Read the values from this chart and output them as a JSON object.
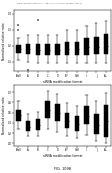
{
  "header_text": "Human Application Substitutions   Aug 2, 2014  Vol.14 of 17  US 8,883,996 B2 (1)",
  "plot1": {
    "title": "FIG. 274",
    "ylabel": "Normalized relative ratio",
    "xlabel": "siRNA modification format",
    "categories": [
      "Pos0",
      "A",
      "B",
      "C",
      "D",
      "E/F",
      "G/H",
      "I",
      "J",
      "K/L"
    ],
    "boxes": [
      {
        "med": 0.18,
        "q1": 0.155,
        "q3": 0.205,
        "whislo": 0.11,
        "whishi": 0.25,
        "fliers": [
          0.3,
          0.33
        ]
      },
      {
        "med": 0.18,
        "q1": 0.15,
        "q3": 0.21,
        "whislo": 0.1,
        "whishi": 0.265,
        "fliers": [
          0.05
        ]
      },
      {
        "med": 0.175,
        "q1": 0.145,
        "q3": 0.21,
        "whislo": 0.09,
        "whishi": 0.265,
        "fliers": [
          0.36
        ]
      },
      {
        "med": 0.175,
        "q1": 0.145,
        "q3": 0.21,
        "whislo": 0.095,
        "whishi": 0.265,
        "fliers": []
      },
      {
        "med": 0.175,
        "q1": 0.145,
        "q3": 0.21,
        "whislo": 0.095,
        "whishi": 0.265,
        "fliers": []
      },
      {
        "med": 0.18,
        "q1": 0.145,
        "q3": 0.225,
        "whislo": 0.09,
        "whishi": 0.295,
        "fliers": []
      },
      {
        "med": 0.18,
        "q1": 0.145,
        "q3": 0.225,
        "whislo": 0.09,
        "whishi": 0.295,
        "fliers": []
      },
      {
        "med": 0.19,
        "q1": 0.145,
        "q3": 0.245,
        "whislo": 0.09,
        "whishi": 0.325,
        "fliers": []
      },
      {
        "med": 0.19,
        "q1": 0.15,
        "q3": 0.255,
        "whislo": 0.09,
        "whishi": 0.34,
        "fliers": []
      },
      {
        "med": 0.2,
        "q1": 0.15,
        "q3": 0.27,
        "whislo": 0.09,
        "whishi": 0.355,
        "fliers": []
      }
    ],
    "ylim": [
      0.04,
      0.42
    ]
  },
  "plot2": {
    "title": "FIG. 1098",
    "ylabel": "Normalized relative ratio",
    "xlabel": "siRNA modification format",
    "categories": [
      "Pos0",
      "A",
      "B",
      "C",
      "D",
      "E/F",
      "G/H",
      "I",
      "J",
      "K/L"
    ],
    "boxes": [
      {
        "med": 0.55,
        "q1": 0.44,
        "q3": 0.66,
        "whislo": 0.28,
        "whishi": 0.82,
        "fliers": []
      },
      {
        "med": 0.32,
        "q1": 0.24,
        "q3": 0.43,
        "whislo": 0.13,
        "whishi": 0.57,
        "fliers": []
      },
      {
        "med": 0.36,
        "q1": 0.26,
        "q3": 0.48,
        "whislo": 0.14,
        "whishi": 0.62,
        "fliers": []
      },
      {
        "med": 0.66,
        "q1": 0.5,
        "q3": 0.82,
        "whislo": 0.28,
        "whishi": 1.02,
        "fliers": []
      },
      {
        "med": 0.6,
        "q1": 0.44,
        "q3": 0.76,
        "whislo": 0.22,
        "whishi": 0.96,
        "fliers": []
      },
      {
        "med": 0.44,
        "q1": 0.3,
        "q3": 0.6,
        "whislo": 0.14,
        "whishi": 0.78,
        "fliers": []
      },
      {
        "med": 0.38,
        "q1": 0.24,
        "q3": 0.54,
        "whislo": 0.1,
        "whishi": 0.72,
        "fliers": []
      },
      {
        "med": 0.54,
        "q1": 0.38,
        "q3": 0.72,
        "whislo": 0.16,
        "whishi": 0.94,
        "fliers": []
      },
      {
        "med": 0.36,
        "q1": 0.18,
        "q3": 0.58,
        "whislo": 0.04,
        "whishi": 0.82,
        "fliers": []
      },
      {
        "med": 0.44,
        "q1": 0.12,
        "q3": 0.74,
        "whislo": 0.0,
        "whishi": 0.98,
        "fliers": []
      }
    ],
    "ylim": [
      -0.05,
      1.15
    ]
  },
  "bg_color": "#ffffff",
  "box_facecolor": "#ffffff",
  "box_edgecolor": "#000000",
  "median_color": "#000000",
  "whisker_color": "#000000",
  "flier_color": "#000000"
}
